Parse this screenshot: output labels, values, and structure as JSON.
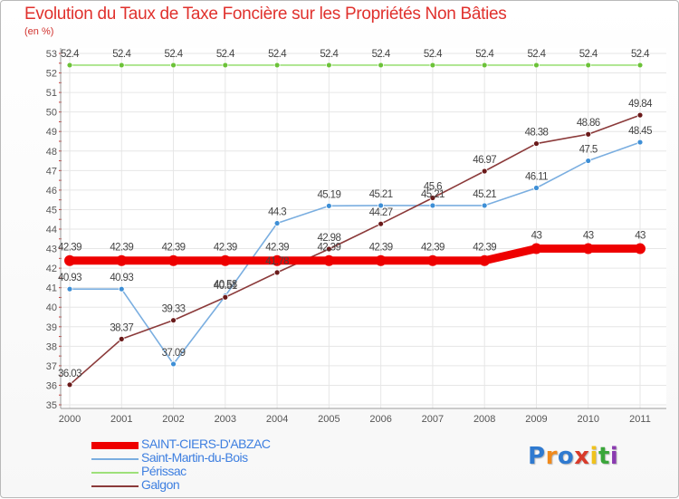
{
  "chart_data": {
    "type": "line",
    "title": "Evolution du Taux de Taxe Foncière sur les Propriétés Non Bâties",
    "unit_label": "(en %)",
    "xlabel": "",
    "ylabel": "",
    "categories": [
      "2000",
      "2001",
      "2002",
      "2003",
      "2004",
      "2005",
      "2006",
      "2007",
      "2008",
      "2009",
      "2010",
      "2011"
    ],
    "ylim": [
      35,
      53
    ],
    "yticks": [
      35,
      36,
      37,
      38,
      39,
      40,
      41,
      42,
      43,
      44,
      45,
      46,
      47,
      48,
      49,
      50,
      51,
      52,
      53
    ],
    "grid": true,
    "legend_position": "bottom-left",
    "series": [
      {
        "name": "SAINT-CIERS-D'ABZAC",
        "color": "#ee0000",
        "values": [
          42.39,
          42.39,
          42.39,
          42.39,
          42.39,
          42.39,
          42.39,
          42.39,
          42.39,
          43,
          43,
          43
        ],
        "labels": [
          "42.39",
          "42.39",
          "42.39",
          "42.39",
          "42.39",
          "42.39",
          "42.39",
          "42.39",
          "42.39",
          "43",
          "43",
          "43"
        ]
      },
      {
        "name": "Saint-Martin-du-Bois",
        "color": "#7aaee0",
        "marker": "#3e8fd6",
        "values": [
          40.93,
          40.93,
          37.09,
          40.58,
          44.3,
          45.19,
          45.21,
          45.21,
          45.21,
          46.11,
          47.5,
          48.45
        ],
        "labels": [
          "40.93",
          "40.93",
          "37.09",
          "40.58",
          "44.3",
          "45.19",
          "45.21",
          "45.21",
          "45.21",
          "46.11",
          "47.5",
          "48.45"
        ]
      },
      {
        "name": "Périssac",
        "color": "#9ee07a",
        "marker": "#6cc238",
        "values": [
          52.4,
          52.4,
          52.4,
          52.4,
          52.4,
          52.4,
          52.4,
          52.4,
          52.4,
          52.4,
          52.4,
          52.4
        ],
        "labels": [
          "52.4",
          "52.4",
          "52.4",
          "52.4",
          "52.4",
          "52.4",
          "52.4",
          "52.4",
          "52.4",
          "52.4",
          "52.4",
          "52.4"
        ]
      },
      {
        "name": "Galgon",
        "color": "#8b3a3a",
        "marker": "#6a1a1a",
        "values": [
          36.03,
          38.37,
          39.33,
          40.51,
          41.78,
          42.98,
          44.27,
          45.6,
          46.97,
          48.38,
          48.86,
          49.84
        ],
        "labels": [
          "36.03",
          "38.37",
          "39.33",
          "40.51",
          "41.78",
          "42.98",
          "44.27",
          "45.6",
          "46.97",
          "48.38",
          "48.86",
          "49.84"
        ]
      }
    ]
  },
  "brand": {
    "letters": [
      "P",
      "r",
      "o",
      "x",
      "i",
      "t",
      "i"
    ],
    "colors": [
      "#2f7ad0",
      "#f08a1c",
      "#2f7ad0",
      "#d83a2a",
      "#f0c21c",
      "#3aa63a",
      "#8a3ab0"
    ]
  }
}
